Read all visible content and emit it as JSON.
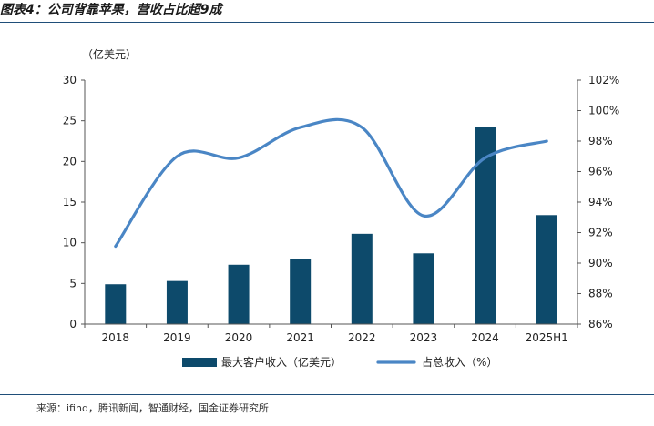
{
  "figure": {
    "title": "图表4：公司背靠苹果，营收占比超9成",
    "source": "来源：ifind，腾讯新闻，智通财经，国金证券研究所"
  },
  "chart_data": {
    "type": "bar",
    "unit_label": "（亿美元）",
    "categories": [
      "2018",
      "2019",
      "2020",
      "2021",
      "2022",
      "2023",
      "2024",
      "2025H1"
    ],
    "series": [
      {
        "name": "最大客户收入（亿美元）",
        "type": "bar",
        "axis": "left",
        "values": [
          4.9,
          5.3,
          7.3,
          8.0,
          11.1,
          8.7,
          24.2,
          13.4
        ]
      },
      {
        "name": "占总收入（%）",
        "type": "line",
        "axis": "right",
        "values": [
          91.1,
          97.0,
          96.9,
          98.9,
          98.9,
          93.1,
          96.9,
          98.0
        ]
      }
    ],
    "y_left": {
      "min": 0,
      "max": 30,
      "ticks": [
        "0",
        "5",
        "10",
        "15",
        "20",
        "25",
        "30"
      ]
    },
    "y_right": {
      "min": 86,
      "max": 102,
      "ticks": [
        "86%",
        "88%",
        "90%",
        "92%",
        "94%",
        "96%",
        "98%",
        "100%",
        "102%"
      ]
    },
    "legend_position": "bottom",
    "grid": false,
    "colors": {
      "bar": "#0d4a6b",
      "line": "#4a86c5",
      "rule": "#1f4e79"
    }
  }
}
